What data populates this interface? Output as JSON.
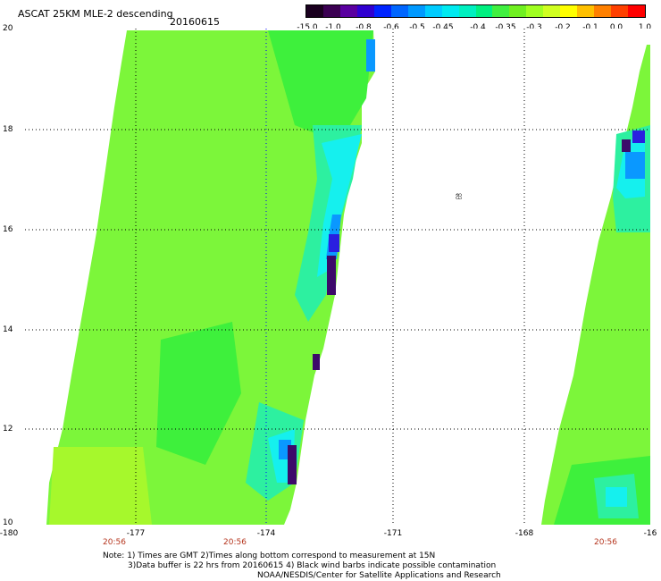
{
  "header": {
    "title": "ASCAT 25KM MLE-2 descending",
    "date": "20160615"
  },
  "colorbar": {
    "colors": [
      "#1a001f",
      "#3b0052",
      "#5a00a0",
      "#3000d0",
      "#0024ff",
      "#0066ff",
      "#0099ff",
      "#00ccff",
      "#00eaf0",
      "#00f0c0",
      "#00f080",
      "#40f040",
      "#70f020",
      "#a0ff20",
      "#d0ff20",
      "#ffff00",
      "#ffc000",
      "#ff8000",
      "#ff4000",
      "#ff0000"
    ],
    "labels": [
      "-15.0",
      "-1.0",
      "-0.8",
      "-0.6",
      "-0.5",
      "-0.45",
      "-0.4",
      "-0.35",
      "-0.3",
      "-0.2",
      "-0.1",
      "0.0",
      "1.0"
    ]
  },
  "map": {
    "lat_labels": [
      "20",
      "18",
      "16",
      "14",
      "12",
      "10"
    ],
    "lon_labels": [
      "-180",
      "-177",
      "-174",
      "-171",
      "-168",
      "-16"
    ],
    "time_labels": [
      "20:56",
      "20:56",
      "20:56"
    ],
    "mark": "ஐ",
    "background": "#ffffff",
    "grid_color": "#0000ff",
    "swath_colors": {
      "base": "#7cf63a",
      "green": "#3ef03c",
      "lime": "#a6f82c",
      "teal": "#2df0a0",
      "cyan": "#15f0ee",
      "blue": "#0a98ff",
      "deep_blue": "#2a1fe0",
      "purple": "#3c0a6a"
    }
  },
  "footer": {
    "note_line1": "Note: 1) Times are GMT 2)Times along bottom correspond to measurement at 15N",
    "note_line2": "3)Data buffer is 22 hrs from 20160615 4) Black wind barbs indicate possible contamination",
    "note_line3": "NOAA/NESDIS/Center for Satellite Applications and Research"
  }
}
